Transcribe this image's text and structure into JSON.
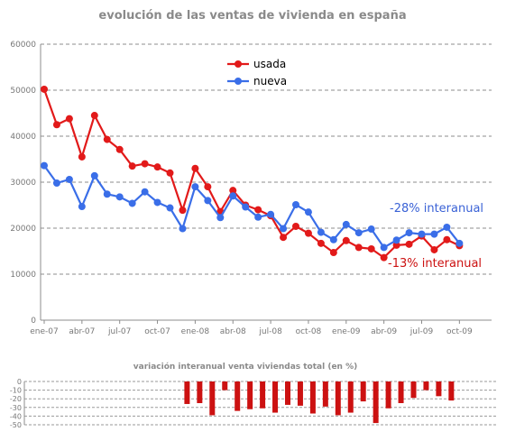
{
  "chart_data": [
    {
      "type": "line",
      "title": "evolución de las ventas de vivienda en españa",
      "xlabel": "",
      "ylabel": "",
      "ylim": [
        0,
        60000
      ],
      "yticks": [
        "0",
        "10000",
        "20000",
        "30000",
        "40000",
        "50000",
        "60000"
      ],
      "xtick_labels": [
        "ene-07",
        "abr-07",
        "jul-07",
        "oct-07",
        "ene-08",
        "abr-08",
        "jul-08",
        "oct-08",
        "ene-09",
        "abr-09",
        "jul-09",
        "oct-09"
      ],
      "grid": "horizontal dashed",
      "legend_position": "top-center",
      "x": [
        "ene-07",
        "feb-07",
        "mar-07",
        "abr-07",
        "may-07",
        "jun-07",
        "jul-07",
        "ago-07",
        "sep-07",
        "oct-07",
        "nov-07",
        "dic-07",
        "ene-08",
        "feb-08",
        "mar-08",
        "abr-08",
        "may-08",
        "jun-08",
        "jul-08",
        "ago-08",
        "sep-08",
        "oct-08",
        "nov-08",
        "dic-08",
        "ene-09",
        "feb-09",
        "mar-09",
        "abr-09",
        "may-09",
        "jun-09",
        "jul-09",
        "ago-09",
        "sep-09",
        "oct-09"
      ],
      "series": [
        {
          "name": "usada",
          "color": "#e21a1a",
          "values": [
            50200,
            42500,
            43800,
            35500,
            44500,
            39300,
            37100,
            33500,
            34000,
            33300,
            32000,
            23900,
            33000,
            29000,
            23600,
            28200,
            25000,
            24000,
            22700,
            18000,
            20400,
            18900,
            16700,
            14700,
            17300,
            15800,
            15500,
            13600,
            16300,
            16500,
            18300,
            15300,
            17500,
            16200
          ]
        },
        {
          "name": "nueva",
          "color": "#3a6ee8",
          "values": [
            33600,
            29800,
            30600,
            24700,
            31400,
            27400,
            26800,
            25400,
            27900,
            25600,
            24400,
            19900,
            29000,
            26000,
            22300,
            27000,
            24600,
            22400,
            23000,
            19900,
            25100,
            23500,
            19100,
            17500,
            20800,
            19000,
            19800,
            15800,
            17400,
            19000,
            18700,
            18700,
            20200,
            16700
          ]
        }
      ],
      "annotations": [
        {
          "text": "-28% interanual",
          "color": "#3a62d6"
        },
        {
          "text": "-13% interanual",
          "color": "#cc1111"
        }
      ]
    },
    {
      "type": "bar",
      "title": "variación interanual venta viviendas total (en %)",
      "ylim": [
        -50,
        0
      ],
      "yticks": [
        "0",
        "-10",
        "-20",
        "-30",
        "-40",
        "-50"
      ],
      "color": "#cc1111",
      "categories": [
        "ene-07",
        "feb-07",
        "mar-07",
        "abr-07",
        "may-07",
        "jun-07",
        "jul-07",
        "ago-07",
        "sep-07",
        "oct-07",
        "nov-07",
        "dic-07",
        "ene-08",
        "feb-08",
        "mar-08",
        "abr-08",
        "may-08",
        "jun-08",
        "jul-08",
        "ago-08",
        "sep-08",
        "oct-08",
        "nov-08",
        "dic-08",
        "ene-09",
        "feb-09",
        "mar-09",
        "abr-09",
        "may-09",
        "jun-09",
        "jul-09",
        "ago-09",
        "sep-09",
        "oct-09"
      ],
      "values": [
        null,
        null,
        null,
        null,
        null,
        null,
        null,
        null,
        null,
        null,
        null,
        null,
        -26,
        -25,
        -39,
        -10,
        -34,
        -32,
        -31,
        -36,
        -27,
        -28,
        -37,
        -29,
        -39,
        -36,
        -23,
        -48,
        -31,
        -25,
        -19,
        -10,
        -17,
        -22
      ]
    }
  ]
}
